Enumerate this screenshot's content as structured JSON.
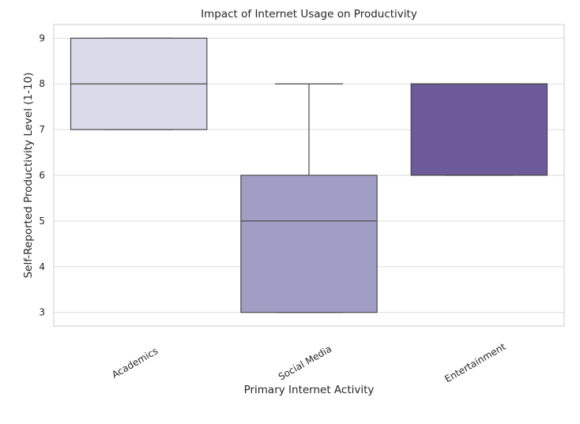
{
  "chart_data": {
    "type": "box",
    "title": "Impact of Internet Usage on Productivity",
    "xlabel": "Primary Internet Activity",
    "ylabel": "Self-Reported Productivity Level (1-10)",
    "categories": [
      "Academics",
      "Social Media",
      "Entertainment"
    ],
    "boxes": [
      {
        "category": "Academics",
        "whisker_low": 7,
        "q1": 7,
        "median": 8,
        "q3": 9,
        "whisker_high": 9,
        "color": "#dadaeb"
      },
      {
        "category": "Social Media",
        "whisker_low": 3,
        "q1": 3,
        "median": 5,
        "q3": 6,
        "whisker_high": 8,
        "color": "#a19dc5"
      },
      {
        "category": "Entertainment",
        "whisker_low": 6,
        "q1": 6,
        "median": 8,
        "q3": 8,
        "whisker_high": 8,
        "color": "#6d5a9b"
      }
    ],
    "yticks": [
      3,
      4,
      5,
      6,
      7,
      8,
      9
    ],
    "ylim": [
      2.7,
      9.3
    ],
    "grid": "horizontal",
    "legend": "none",
    "colors": {
      "grid": "#dddddd",
      "frame": "#cccccc",
      "box_edge": "#4a4a4a",
      "text": "#262626"
    }
  }
}
